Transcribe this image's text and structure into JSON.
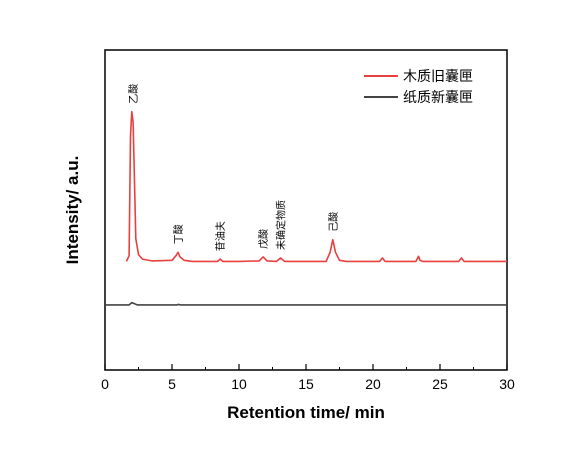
{
  "chart_data": {
    "type": "line",
    "xlabel": "Retention time/ min",
    "ylabel": "Intensity/ a.u.",
    "xlim": [
      0,
      30
    ],
    "xticks": [
      0,
      5,
      10,
      15,
      20,
      25,
      30
    ],
    "yticks_shown": false,
    "grid": false,
    "legend_position": "top-right",
    "series": [
      {
        "name": "木质旧囊匣",
        "color": "#e8403f",
        "baseline": 1.0,
        "x": [
          1.6,
          1.8,
          1.9,
          2.0,
          2.1,
          2.2,
          2.3,
          2.5,
          2.8,
          3.5,
          5.0,
          5.3,
          5.45,
          5.6,
          5.9,
          6.5,
          8.4,
          8.6,
          8.8,
          10.0,
          11.5,
          11.8,
          12.1,
          12.8,
          13.1,
          13.4,
          16.5,
          16.8,
          17.0,
          17.2,
          17.5,
          18.0,
          20.5,
          20.7,
          20.9,
          23.2,
          23.4,
          23.5,
          23.7,
          26.4,
          26.6,
          26.8,
          30.0
        ],
        "y": [
          1.0,
          1.5,
          12.0,
          14.1,
          13.2,
          8.0,
          3.0,
          1.6,
          1.2,
          1.05,
          1.1,
          1.5,
          1.8,
          1.4,
          1.1,
          1.0,
          1.0,
          1.2,
          1.0,
          1.0,
          1.05,
          1.4,
          1.05,
          1.0,
          1.3,
          1.0,
          1.0,
          1.8,
          2.9,
          1.8,
          1.1,
          1.0,
          1.0,
          1.3,
          1.0,
          1.0,
          1.45,
          1.1,
          1.0,
          1.0,
          1.3,
          1.0,
          1.0
        ]
      },
      {
        "name": "纸质新囊匣",
        "color": "#444444",
        "baseline": -2.8,
        "x": [
          0.0,
          1.8,
          2.0,
          2.2,
          2.4,
          5.4,
          5.5,
          5.6,
          30.0
        ],
        "y": [
          -2.8,
          -2.8,
          -2.6,
          -2.7,
          -2.8,
          -2.8,
          -2.75,
          -2.8,
          -2.8
        ]
      }
    ],
    "annotations": [
      {
        "text": "乙酸",
        "x": 2.1
      },
      {
        "text": "丁酸",
        "x": 5.45
      },
      {
        "text": "苷油夫",
        "x": 8.6
      },
      {
        "text": "戊酸",
        "x": 11.8
      },
      {
        "text": "未确定物质",
        "x": 13.1
      },
      {
        "text": "己酸",
        "x": 17.0
      }
    ]
  }
}
